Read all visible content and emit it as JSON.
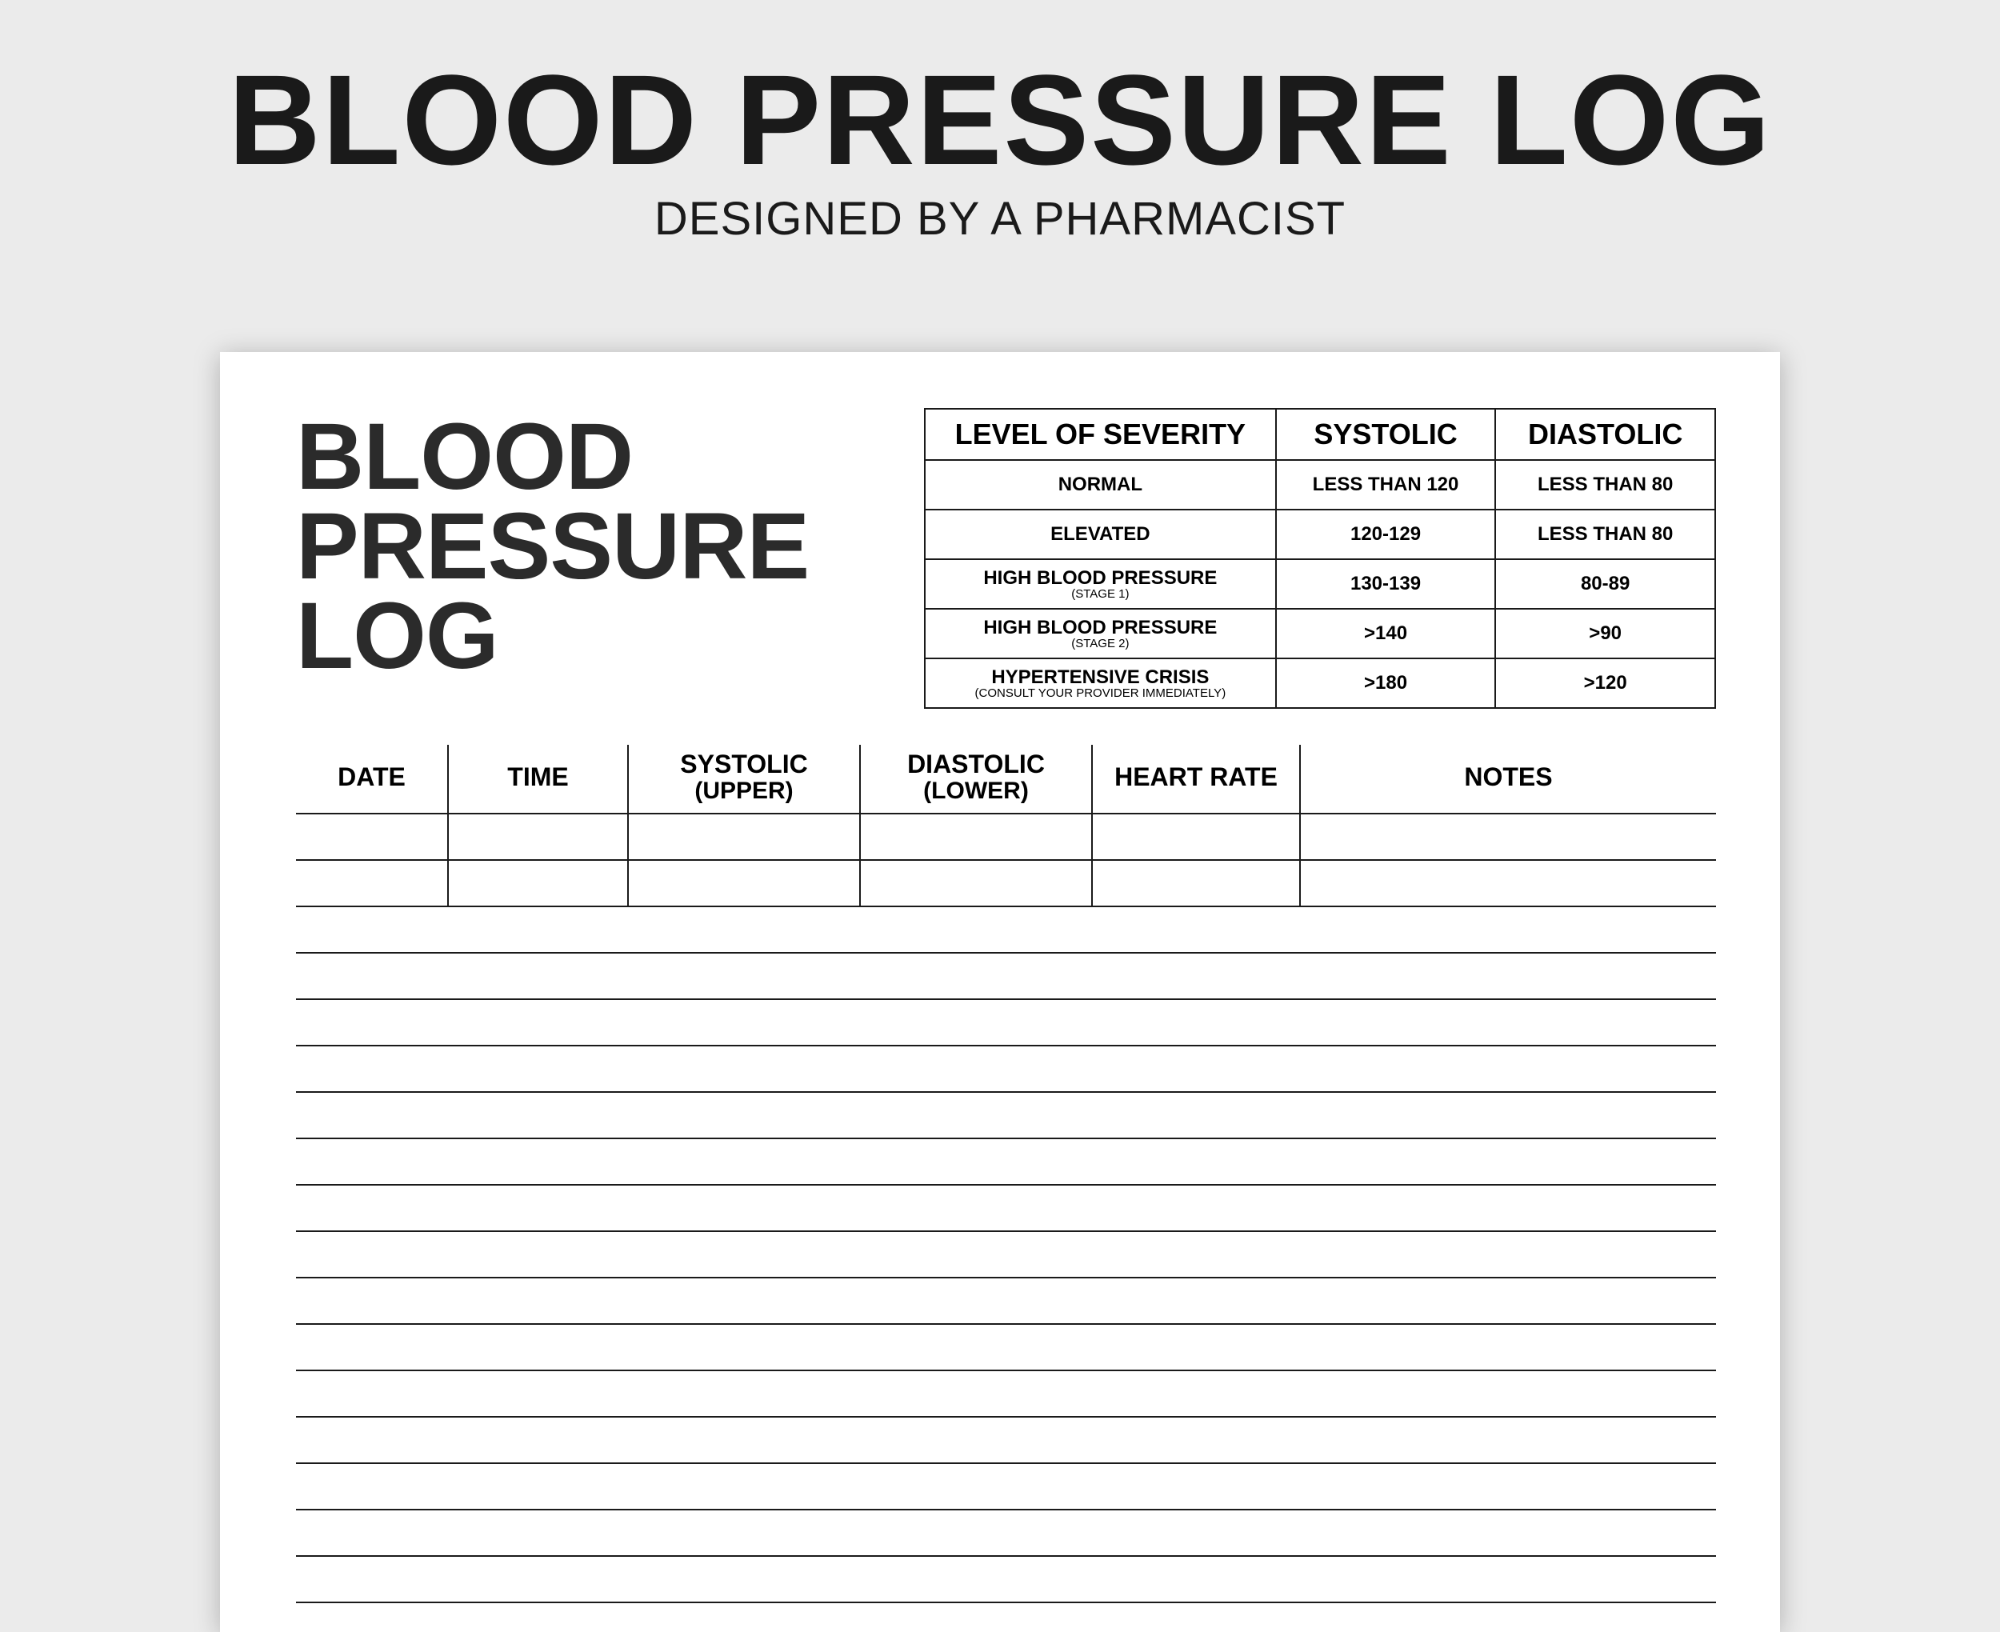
{
  "header": {
    "title": "BLOOD PRESSURE LOG",
    "subtitle": "DESIGNED BY A PHARMACIST"
  },
  "sheet": {
    "title_line1": "BLOOD",
    "title_line2": "PRESSURE",
    "title_line3": "LOG"
  },
  "severity": {
    "columns": {
      "level": "LEVEL OF SEVERITY",
      "systolic": "SYSTOLIC",
      "diastolic": "DIASTOLIC"
    },
    "rows": [
      {
        "level": "NORMAL",
        "sub": "",
        "systolic": "LESS THAN 120",
        "diastolic": "LESS THAN 80"
      },
      {
        "level": "ELEVATED",
        "sub": "",
        "systolic": "120-129",
        "diastolic": "LESS THAN 80"
      },
      {
        "level": "HIGH BLOOD PRESSURE",
        "sub": "(STAGE 1)",
        "systolic": "130-139",
        "diastolic": "80-89"
      },
      {
        "level": "HIGH BLOOD PRESSURE",
        "sub": "(STAGE 2)",
        "systolic": ">140",
        "diastolic": ">90"
      },
      {
        "level": "HYPERTENSIVE CRISIS",
        "sub": "(CONSULT YOUR PROVIDER IMMEDIATELY)",
        "systolic": ">180",
        "diastolic": ">120"
      }
    ]
  },
  "log": {
    "columns": {
      "date": "DATE",
      "time": "TIME",
      "systolic": "SYSTOLIC",
      "systolic_sub": "(UPPER)",
      "diastolic": "DIASTOLIC",
      "diastolic_sub": "(LOWER)",
      "heart_rate": "HEART RATE",
      "notes": "NOTES"
    },
    "row_count": 17,
    "separator_rows": 2
  },
  "style": {
    "page_bg": "#ebebeb",
    "sheet_bg": "#ffffff",
    "text_color": "#1a1a1a",
    "border_color": "#1a1a1a",
    "shadow": "0 4px 30px rgba(0,0,0,0.25)",
    "main_title_fontsize": 160,
    "subtitle_fontsize": 58,
    "sheet_title_fontsize": 118,
    "severity_header_fontsize": 36,
    "severity_cell_fontsize": 24,
    "severity_sub_fontsize": 15,
    "log_header_fontsize": 32,
    "log_row_height": 58,
    "severity_row_height": 62,
    "col_widths": {
      "date": 190,
      "time": 225,
      "systolic": 290,
      "diastolic": 290,
      "heart_rate": 260
    }
  }
}
